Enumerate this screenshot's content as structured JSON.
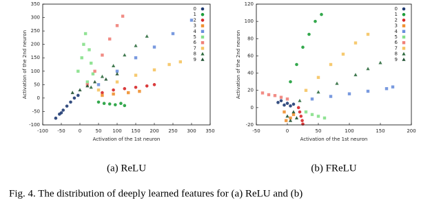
{
  "chart_data": [
    {
      "type": "scatter",
      "title": "(a) ReLU",
      "xlabel": "Activation of the 1st neuron",
      "ylabel": "Activation of the 2nd neuron",
      "xlim": [
        -100,
        350
      ],
      "xticks": [
        -100,
        -50,
        0,
        50,
        100,
        150,
        200,
        250,
        300,
        350
      ],
      "ylim": [
        -100,
        350
      ],
      "yticks": [
        -100,
        -50,
        0,
        50,
        100,
        150,
        200,
        250,
        300,
        350
      ],
      "series": [
        {
          "name": "0",
          "color": "#1f3b73",
          "marker": "circle",
          "x": [
            -65,
            -55,
            -45,
            -35,
            -25,
            -15,
            -5,
            -50
          ],
          "y": [
            -75,
            -60,
            -45,
            -30,
            -15,
            0,
            10,
            -55
          ]
        },
        {
          "name": "1",
          "color": "#1e9e3a",
          "marker": "circle",
          "x": [
            50,
            65,
            80,
            95,
            110,
            120
          ],
          "y": [
            -15,
            -20,
            -22,
            -25,
            -20,
            -28
          ]
        },
        {
          "name": "2",
          "color": "#d62728",
          "marker": "circle",
          "x": [
            60,
            90,
            120,
            150,
            180,
            200
          ],
          "y": [
            20,
            30,
            35,
            40,
            45,
            50
          ]
        },
        {
          "name": "3",
          "color": "#f09030",
          "marker": "square",
          "x": [
            60,
            90,
            130,
            160
          ],
          "y": [
            10,
            15,
            20,
            25
          ]
        },
        {
          "name": "4",
          "color": "#6a8fdc",
          "marker": "square",
          "x": [
            50,
            100,
            150,
            200,
            250,
            300
          ],
          "y": [
            50,
            100,
            150,
            190,
            240,
            290
          ]
        },
        {
          "name": "5",
          "color": "#86e08a",
          "marker": "square",
          "x": [
            -5,
            5,
            10,
            15,
            25,
            30,
            35,
            20
          ],
          "y": [
            100,
            150,
            200,
            240,
            180,
            130,
            90,
            60
          ]
        },
        {
          "name": "6",
          "color": "#f08078",
          "marker": "square",
          "x": [
            20,
            40,
            60,
            80,
            100,
            115
          ],
          "y": [
            50,
            100,
            160,
            220,
            270,
            305
          ]
        },
        {
          "name": "7",
          "color": "#f5c462",
          "marker": "square",
          "x": [
            50,
            100,
            150,
            200,
            240,
            270
          ],
          "y": [
            30,
            60,
            85,
            105,
            125,
            135
          ]
        },
        {
          "name": "8",
          "color": "#2e6b3e",
          "marker": "triangle",
          "x": [
            30,
            60,
            90,
            120,
            150,
            180
          ],
          "y": [
            40,
            80,
            120,
            160,
            195,
            230
          ]
        },
        {
          "name": "9",
          "color": "#1f5030",
          "marker": "triangle",
          "x": [
            -20,
            0,
            20,
            40,
            70,
            100
          ],
          "y": [
            20,
            30,
            45,
            60,
            70,
            90
          ]
        }
      ]
    },
    {
      "type": "scatter",
      "title": "(b) FReLU",
      "xlabel": "Activation of the 1st neuron",
      "ylabel": "Activation of the 2nd neuron",
      "xlim": [
        -50,
        200
      ],
      "xticks": [
        -50,
        0,
        50,
        100,
        150,
        200
      ],
      "ylim": [
        -20,
        120
      ],
      "yticks": [
        -20,
        0,
        20,
        40,
        60,
        80,
        100,
        120
      ],
      "series": [
        {
          "name": "0",
          "color": "#1f3b73",
          "marker": "circle",
          "x": [
            -10,
            -5,
            0,
            5,
            -15,
            10
          ],
          "y": [
            8,
            3,
            5,
            2,
            6,
            4
          ]
        },
        {
          "name": "1",
          "color": "#1e9e3a",
          "marker": "circle",
          "x": [
            5,
            15,
            25,
            35,
            45,
            55
          ],
          "y": [
            30,
            50,
            70,
            85,
            100,
            108
          ]
        },
        {
          "name": "2",
          "color": "#d62728",
          "marker": "circle",
          "x": [
            20,
            22,
            24,
            25,
            18
          ],
          "y": [
            -5,
            -10,
            -15,
            -19,
            0
          ]
        },
        {
          "name": "3",
          "color": "#f09030",
          "marker": "square",
          "x": [
            -5,
            5,
            -2,
            10
          ],
          "y": [
            -5,
            -12,
            -15,
            -8
          ]
        },
        {
          "name": "4",
          "color": "#6a8fdc",
          "marker": "square",
          "x": [
            40,
            70,
            100,
            130,
            160,
            170
          ],
          "y": [
            10,
            13,
            16,
            19,
            22,
            24
          ]
        },
        {
          "name": "5",
          "color": "#86e08a",
          "marker": "square",
          "x": [
            30,
            40,
            50,
            60
          ],
          "y": [
            -5,
            -8,
            -10,
            -12
          ]
        },
        {
          "name": "6",
          "color": "#f08078",
          "marker": "square",
          "x": [
            -40,
            -30,
            -20,
            -10,
            0
          ],
          "y": [
            17,
            15,
            14,
            12,
            10
          ]
        },
        {
          "name": "7",
          "color": "#f5c462",
          "marker": "square",
          "x": [
            30,
            50,
            70,
            90,
            110,
            130
          ],
          "y": [
            20,
            35,
            50,
            62,
            75,
            85
          ]
        },
        {
          "name": "8",
          "color": "#2e6b3e",
          "marker": "triangle",
          "x": [
            20,
            50,
            80,
            110,
            130,
            150
          ],
          "y": [
            8,
            18,
            28,
            38,
            45,
            52
          ]
        },
        {
          "name": "9",
          "color": "#1f5030",
          "marker": "triangle",
          "x": [
            0,
            5,
            10,
            15
          ],
          "y": [
            -10,
            -15,
            -5,
            -12
          ]
        }
      ]
    }
  ],
  "caption": "Fig. 4.   The distribution of deeply learned features for (a) ReLU and (b)"
}
